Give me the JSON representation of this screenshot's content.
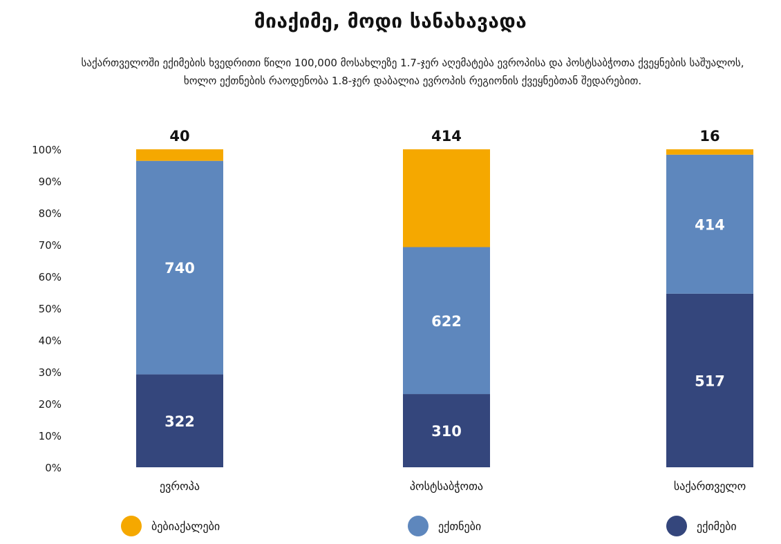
{
  "title": "მიაქიმე, მოდი სანახავადა",
  "subtitle": "საქართველოში ექიმების ხვედრითი წილი 100,000 მოსახლეზე 1.7-ჯერ აღემატება ევროპისა და პოსტსაბჭოთა ქვეყნების საშუალოს, ხოლო ექთნების რაოდენობა 1.8-ჯერ დაბალია ევროპის რეგიონის ქვეყნებთან შედარებით.",
  "colors": {
    "midwives": "#F5A800",
    "nurses": "#5E87BD",
    "doctors": "#34467C"
  },
  "chart_data": {
    "type": "bar",
    "stacked": true,
    "normalized": true,
    "categories": [
      "ევროპა",
      "პოსტსაბჭოთა",
      "საქართველო"
    ],
    "series": [
      {
        "name": "ექიმები",
        "values": [
          322,
          310,
          517
        ]
      },
      {
        "name": "ექთნები",
        "values": [
          740,
          622,
          414
        ]
      },
      {
        "name": "ბებიაქალები",
        "values": [
          40,
          414,
          16
        ]
      }
    ],
    "y_ticks": [
      "0%",
      "10%",
      "20%",
      "30%",
      "40%",
      "50%",
      "60%",
      "70%",
      "80%",
      "90%",
      "100%"
    ],
    "ylim": [
      0,
      100
    ],
    "legend": [
      "ბებიაქალები",
      "ექთნები",
      "ექიმები"
    ],
    "legend_position": "bottom",
    "grid": false
  }
}
